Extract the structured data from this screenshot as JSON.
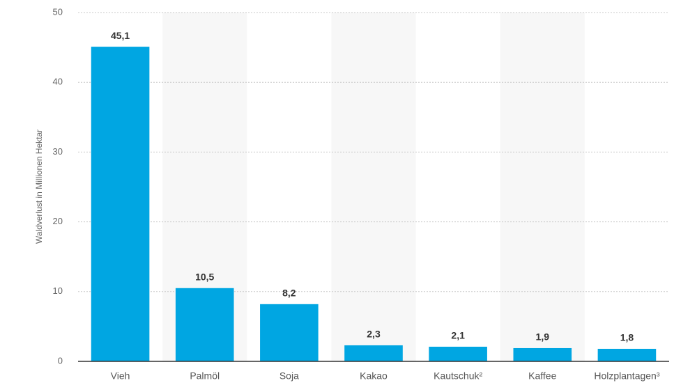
{
  "chart_data": {
    "type": "bar",
    "y_label": "Waldverlust in Millionen Hektar",
    "categories": [
      "Vieh",
      "Palmöl",
      "Soja",
      "Kakao",
      "Kautschuk²",
      "Kaffee",
      "Holzplantagen³"
    ],
    "values": [
      45.1,
      10.5,
      8.2,
      2.3,
      2.1,
      1.9,
      1.8
    ],
    "value_labels": [
      "45,1",
      "10,5",
      "8,2",
      "2,3",
      "2,1",
      "1,9",
      "1,8"
    ],
    "color": "#00a6e2",
    "ylim": [
      0,
      50
    ],
    "yticks": [
      0,
      10,
      20,
      30,
      40,
      50
    ],
    "grid": true
  }
}
